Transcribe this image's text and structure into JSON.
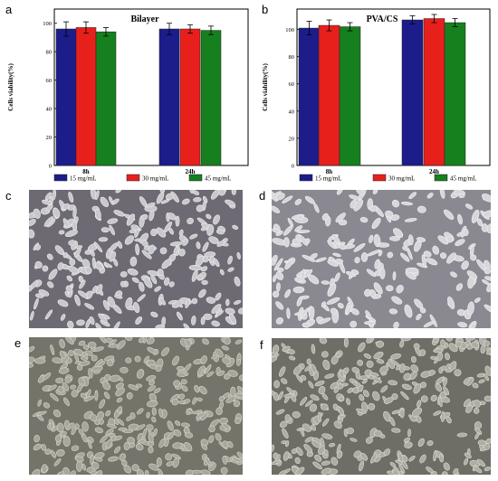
{
  "panels": {
    "a": "a",
    "b": "b",
    "c": "c",
    "d": "d",
    "e": "e",
    "f": "f"
  },
  "colors": {
    "s15": "#1c1c8a",
    "s30": "#e8201c",
    "s45": "#16801e"
  },
  "chart_data": [
    {
      "type": "bar",
      "title": "Bilayer",
      "xlabel": "",
      "ylabel": "Cells viability(%)",
      "categories": [
        "8h",
        "24h"
      ],
      "ylim": [
        0,
        110
      ],
      "yticks": [
        0,
        20,
        40,
        60,
        80,
        100
      ],
      "series": [
        {
          "name": "15 mg/mL",
          "values": [
            96,
            96
          ],
          "errors": [
            5,
            4
          ]
        },
        {
          "name": "30 mg/mL",
          "values": [
            97,
            96
          ],
          "errors": [
            4,
            3
          ]
        },
        {
          "name": "45 mg/mL",
          "values": [
            94,
            95
          ],
          "errors": [
            3,
            3
          ]
        }
      ],
      "legend": "bottom",
      "grid": false
    },
    {
      "type": "bar",
      "title": "PVA/CS",
      "xlabel": "",
      "ylabel": "Cells viability(%)",
      "categories": [
        "8h",
        "24h"
      ],
      "ylim": [
        0,
        115
      ],
      "yticks": [
        0,
        20,
        40,
        60,
        80,
        100
      ],
      "series": [
        {
          "name": "15 mg/mL",
          "values": [
            101,
            107
          ],
          "errors": [
            5,
            3
          ]
        },
        {
          "name": "30 mg/mL",
          "values": [
            103,
            108
          ],
          "errors": [
            4,
            3
          ]
        },
        {
          "name": "45 mg/mL",
          "values": [
            102,
            105
          ],
          "errors": [
            3,
            3
          ]
        }
      ],
      "legend": "bottom",
      "grid": false
    }
  ]
}
